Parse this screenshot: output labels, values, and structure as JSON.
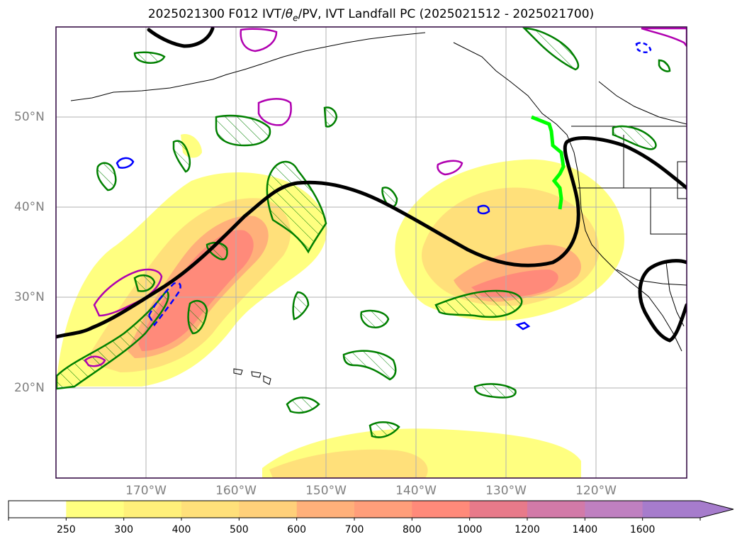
{
  "title": {
    "prefix": "2025021300 F012 IVT/",
    "theta": "θ",
    "theta_sub": "e",
    "suffix": "/PV, IVT Landfall PC (2025021512 - 2025021700)"
  },
  "map": {
    "lat_labels": [
      "50°N",
      "40°N",
      "30°N",
      "20°N"
    ],
    "lon_labels": [
      "170°W",
      "160°W",
      "150°W",
      "140°W",
      "130°W",
      "120°W"
    ],
    "gridlines": true,
    "colors": {
      "jet_contour": "#000000",
      "pv_contour": "#008000",
      "theta_e_contour": "#b000b0",
      "negative_contour": "#0000ff",
      "landfall_line": "#00ff00",
      "coastline": "#000000"
    }
  },
  "colorbar": {
    "levels": [
      "250",
      "300",
      "400",
      "500",
      "600",
      "700",
      "800",
      "1000",
      "1200",
      "1400",
      "1600"
    ],
    "colors": [
      "#ffffff",
      "#ffff80",
      "#fff07a",
      "#ffe07a",
      "#ffd07a",
      "#ffb07a",
      "#ff9e7a",
      "#ff8a7a",
      "#e87a8a",
      "#d27aa8",
      "#bf80c0",
      "#a67ccc"
    ],
    "extend": "max"
  }
}
